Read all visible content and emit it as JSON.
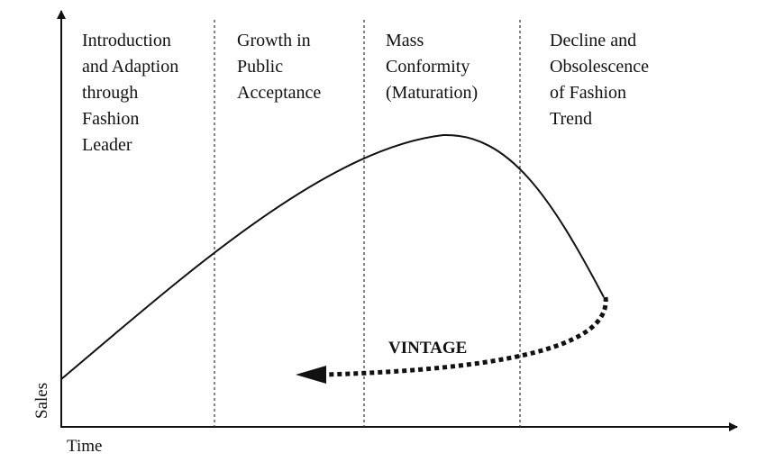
{
  "axes": {
    "y_label": "Sales",
    "x_label": "Time"
  },
  "stages": [
    {
      "lines": [
        "Introduction",
        "and Adaption",
        "through",
        "Fashion",
        "Leader"
      ]
    },
    {
      "lines": [
        "Growth in",
        "Public",
        "Acceptance"
      ]
    },
    {
      "lines": [
        "Mass",
        "Conformity",
        "(Maturation)"
      ]
    },
    {
      "lines": [
        "Decline and",
        "Obsolescence",
        "of Fashion",
        "Trend"
      ]
    }
  ],
  "vintage": {
    "label": "VINTAGE"
  },
  "colors": {
    "ink": "#111111",
    "background": "#ffffff"
  }
}
